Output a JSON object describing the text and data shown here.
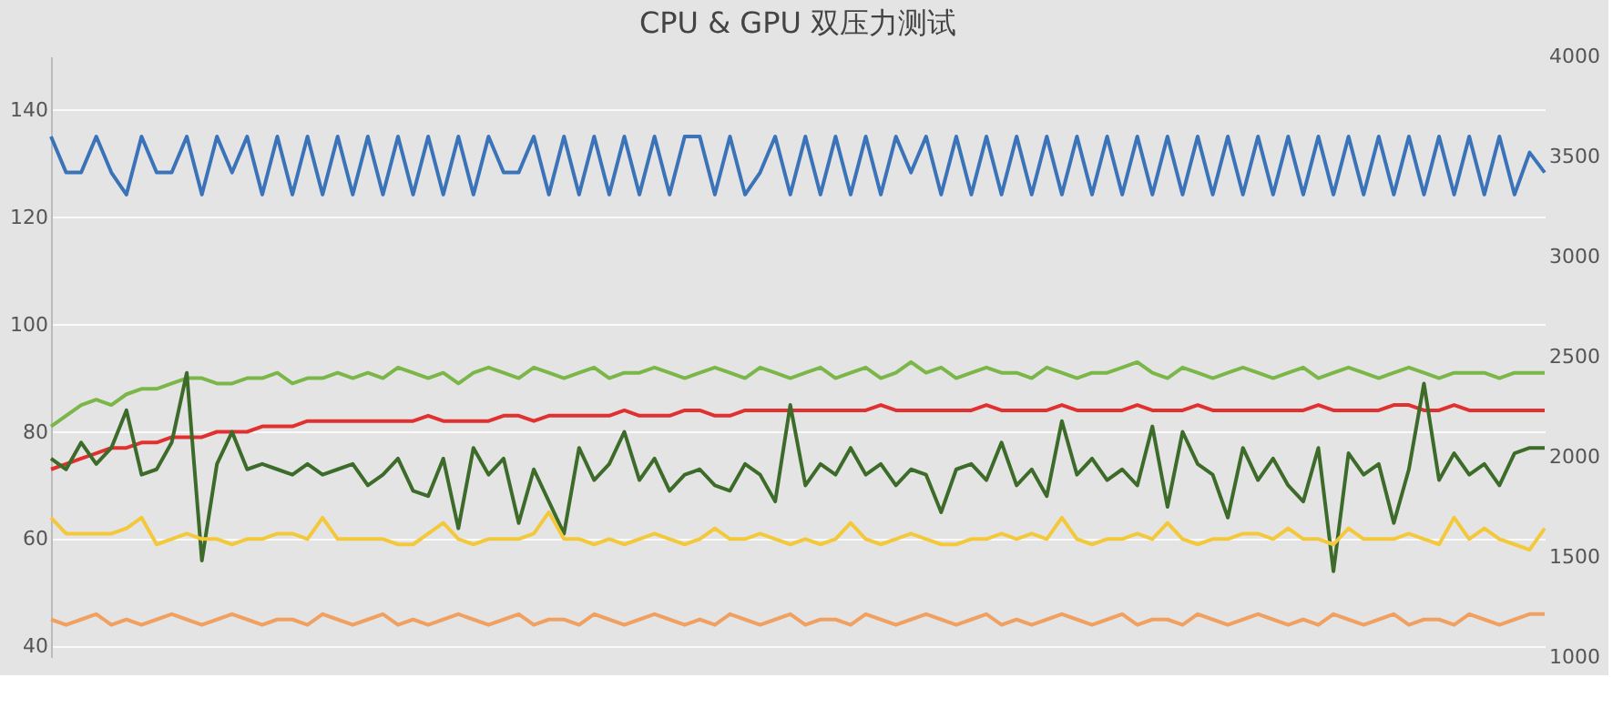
{
  "chart_data": {
    "type": "line",
    "title": "CPU & GPU 双压力测试",
    "ylim": [
      38,
      150
    ],
    "yticks": [
      40,
      60,
      80,
      100,
      120,
      140
    ],
    "y2lim": [
      1000,
      4000
    ],
    "y2ticks": [
      1000,
      1500,
      2000,
      2500,
      3000,
      3500,
      4000
    ],
    "tick_labels": "y",
    "grid": "y",
    "legend": false,
    "marker": "none",
    "line_style": "solid",
    "categories": [
      null,
      null,
      null,
      null,
      null,
      null,
      null,
      null,
      null,
      null,
      null,
      null,
      null,
      null,
      null,
      null,
      null,
      null,
      null,
      null,
      null,
      null,
      null,
      null,
      null,
      null,
      null,
      null,
      null,
      null,
      null,
      null,
      null,
      null,
      null,
      null,
      null,
      null,
      null,
      null,
      null,
      null,
      null,
      null,
      null,
      null,
      null,
      null,
      null,
      null,
      null,
      null,
      null,
      null,
      null,
      null,
      null,
      null,
      null,
      null,
      null,
      null,
      null,
      null,
      null,
      null,
      null,
      null,
      null,
      null,
      null,
      null,
      null,
      null,
      null,
      null,
      null,
      null,
      null,
      null,
      null,
      null,
      null,
      null,
      null,
      null,
      null,
      null,
      null,
      null,
      null,
      null,
      null,
      null,
      null,
      null,
      null,
      null,
      null,
      null
    ],
    "series": [
      {
        "color": "#3b73b9",
        "axis": "y2",
        "values": [
          3600,
          3420,
          3420,
          3600,
          3420,
          3310,
          3600,
          3420,
          3420,
          3600,
          3310,
          3600,
          3420,
          3600,
          3310,
          3600,
          3310,
          3600,
          3310,
          3600,
          3310,
          3600,
          3310,
          3600,
          3310,
          3600,
          3310,
          3600,
          3310,
          3600,
          3420,
          3420,
          3600,
          3310,
          3600,
          3310,
          3600,
          3310,
          3600,
          3310,
          3600,
          3310,
          3600,
          3600,
          3310,
          3600,
          3310,
          3420,
          3600,
          3310,
          3600,
          3310,
          3600,
          3310,
          3600,
          3310,
          3600,
          3420,
          3600,
          3310,
          3600,
          3310,
          3600,
          3310,
          3600,
          3310,
          3600,
          3310,
          3600,
          3310,
          3600,
          3310,
          3600,
          3310,
          3600,
          3310,
          3600,
          3310,
          3600,
          3310,
          3600,
          3310,
          3600,
          3310,
          3600,
          3310,
          3600,
          3310,
          3600,
          3310,
          3600,
          3310,
          3600,
          3310,
          3600,
          3310,
          3600,
          3310,
          3520,
          3420
        ]
      },
      {
        "color": "#7ab648",
        "values": [
          81,
          83,
          85,
          86,
          85,
          87,
          88,
          88,
          89,
          90,
          90,
          89,
          89,
          90,
          90,
          91,
          89,
          90,
          90,
          91,
          90,
          91,
          90,
          92,
          91,
          90,
          91,
          89,
          91,
          92,
          91,
          90,
          92,
          91,
          90,
          91,
          92,
          90,
          91,
          91,
          92,
          91,
          90,
          91,
          92,
          91,
          90,
          92,
          91,
          90,
          91,
          92,
          90,
          91,
          92,
          90,
          91,
          93,
          91,
          92,
          90,
          91,
          92,
          91,
          91,
          90,
          92,
          91,
          90,
          91,
          91,
          92,
          93,
          91,
          90,
          92,
          91,
          90,
          91,
          92,
          91,
          90,
          91,
          92,
          90,
          91,
          92,
          91,
          90,
          91,
          92,
          91,
          90,
          91,
          91,
          91,
          90,
          91,
          91,
          91
        ]
      },
      {
        "color": "#e03030",
        "values": [
          73,
          74,
          75,
          76,
          77,
          77,
          78,
          78,
          79,
          79,
          79,
          80,
          80,
          80,
          81,
          81,
          81,
          82,
          82,
          82,
          82,
          82,
          82,
          82,
          82,
          83,
          82,
          82,
          82,
          82,
          83,
          83,
          82,
          83,
          83,
          83,
          83,
          83,
          84,
          83,
          83,
          83,
          84,
          84,
          83,
          83,
          84,
          84,
          84,
          84,
          84,
          84,
          84,
          84,
          84,
          85,
          84,
          84,
          84,
          84,
          84,
          84,
          85,
          84,
          84,
          84,
          84,
          85,
          84,
          84,
          84,
          84,
          85,
          84,
          84,
          84,
          85,
          84,
          84,
          84,
          84,
          84,
          84,
          84,
          85,
          84,
          84,
          84,
          84,
          85,
          85,
          84,
          84,
          85,
          84,
          84,
          84,
          84,
          84,
          84
        ]
      },
      {
        "color": "#3d6b2a",
        "values": [
          75,
          73,
          78,
          74,
          77,
          84,
          72,
          73,
          78,
          91,
          56,
          74,
          80,
          73,
          74,
          73,
          72,
          74,
          72,
          73,
          74,
          70,
          72,
          75,
          69,
          68,
          75,
          62,
          77,
          72,
          75,
          63,
          73,
          67,
          61,
          77,
          71,
          74,
          80,
          71,
          75,
          69,
          72,
          73,
          70,
          69,
          74,
          72,
          67,
          85,
          70,
          74,
          72,
          77,
          72,
          74,
          70,
          73,
          72,
          65,
          73,
          74,
          71,
          78,
          70,
          73,
          68,
          82,
          72,
          75,
          71,
          73,
          70,
          81,
          66,
          80,
          74,
          72,
          64,
          77,
          71,
          75,
          70,
          67,
          77,
          54,
          76,
          72,
          74,
          63,
          73,
          89,
          71,
          76,
          72,
          74,
          70,
          76,
          77,
          77
        ]
      },
      {
        "color": "#f3c83a",
        "values": [
          64,
          61,
          61,
          61,
          61,
          62,
          64,
          59,
          60,
          61,
          60,
          60,
          59,
          60,
          60,
          61,
          61,
          60,
          64,
          60,
          60,
          60,
          60,
          59,
          59,
          61,
          63,
          60,
          59,
          60,
          60,
          60,
          61,
          65,
          60,
          60,
          59,
          60,
          59,
          60,
          61,
          60,
          59,
          60,
          62,
          60,
          60,
          61,
          60,
          59,
          60,
          59,
          60,
          63,
          60,
          59,
          60,
          61,
          60,
          59,
          59,
          60,
          60,
          61,
          60,
          61,
          60,
          64,
          60,
          59,
          60,
          60,
          61,
          60,
          63,
          60,
          59,
          60,
          60,
          61,
          61,
          60,
          62,
          60,
          60,
          59,
          62,
          60,
          60,
          60,
          61,
          60,
          59,
          64,
          60,
          62,
          60,
          59,
          58,
          62
        ]
      },
      {
        "color": "#f0a060",
        "values": [
          45,
          44,
          45,
          46,
          44,
          45,
          44,
          45,
          46,
          45,
          44,
          45,
          46,
          45,
          44,
          45,
          45,
          44,
          46,
          45,
          44,
          45,
          46,
          44,
          45,
          44,
          45,
          46,
          45,
          44,
          45,
          46,
          44,
          45,
          45,
          44,
          46,
          45,
          44,
          45,
          46,
          45,
          44,
          45,
          44,
          46,
          45,
          44,
          45,
          46,
          44,
          45,
          45,
          44,
          46,
          45,
          44,
          45,
          46,
          45,
          44,
          45,
          46,
          44,
          45,
          44,
          45,
          46,
          45,
          44,
          45,
          46,
          44,
          45,
          45,
          44,
          46,
          45,
          44,
          45,
          46,
          45,
          44,
          45,
          44,
          46,
          45,
          44,
          45,
          46,
          44,
          45,
          45,
          44,
          46,
          45,
          44,
          45,
          46,
          46
        ]
      }
    ]
  }
}
